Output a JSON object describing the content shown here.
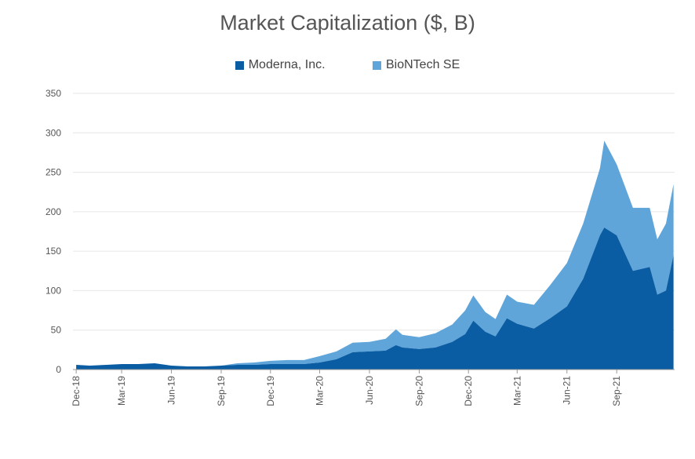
{
  "chart_data": {
    "type": "area",
    "title": "Market Capitalization ($, B)",
    "legend_position": "top",
    "stacked": true,
    "ylim": [
      0,
      350
    ],
    "yticks": [
      0,
      50,
      100,
      150,
      200,
      250,
      300,
      350
    ],
    "grid": true,
    "x_tick_labels": [
      "Dec-18",
      "Mar-19",
      "Jun-19",
      "Sep-19",
      "Dec-19",
      "Mar-20",
      "Jun-20",
      "Sep-20",
      "Dec-20",
      "Mar-21",
      "Jun-21",
      "Sep-21"
    ],
    "series": [
      {
        "name": "Moderna, Inc.",
        "color": "#0a5da3",
        "points": [
          [
            "2018-12-07",
            6
          ],
          [
            "2019-01-01",
            5
          ],
          [
            "2019-02-01",
            6
          ],
          [
            "2019-03-01",
            7
          ],
          [
            "2019-04-01",
            7
          ],
          [
            "2019-05-01",
            8
          ],
          [
            "2019-06-01",
            5
          ],
          [
            "2019-07-01",
            4
          ],
          [
            "2019-08-01",
            4
          ],
          [
            "2019-09-01",
            5
          ],
          [
            "2019-10-01",
            6
          ],
          [
            "2019-11-01",
            6
          ],
          [
            "2019-12-01",
            7
          ],
          [
            "2020-01-01",
            7
          ],
          [
            "2020-02-01",
            7
          ],
          [
            "2020-03-01",
            9
          ],
          [
            "2020-04-01",
            13
          ],
          [
            "2020-05-01",
            22
          ],
          [
            "2020-06-01",
            23
          ],
          [
            "2020-07-01",
            24
          ],
          [
            "2020-07-20",
            31
          ],
          [
            "2020-08-01",
            28
          ],
          [
            "2020-09-01",
            26
          ],
          [
            "2020-10-01",
            28
          ],
          [
            "2020-11-01",
            35
          ],
          [
            "2020-11-25",
            45
          ],
          [
            "2020-12-10",
            62
          ],
          [
            "2021-01-01",
            48
          ],
          [
            "2021-01-20",
            42
          ],
          [
            "2021-02-10",
            65
          ],
          [
            "2021-03-01",
            58
          ],
          [
            "2021-04-01",
            52
          ],
          [
            "2021-05-01",
            65
          ],
          [
            "2021-06-01",
            80
          ],
          [
            "2021-07-01",
            115
          ],
          [
            "2021-08-01",
            170
          ],
          [
            "2021-08-09",
            180
          ],
          [
            "2021-09-01",
            170
          ],
          [
            "2021-10-01",
            125
          ],
          [
            "2021-11-01",
            130
          ],
          [
            "2021-11-15",
            95
          ],
          [
            "2021-12-01",
            100
          ],
          [
            "2021-12-15",
            145
          ]
        ]
      },
      {
        "name": "BioNTech SE",
        "color": "#5fa5d9",
        "points": [
          [
            "2018-12-07",
            0
          ],
          [
            "2019-09-01",
            0
          ],
          [
            "2019-10-01",
            2
          ],
          [
            "2019-11-01",
            3
          ],
          [
            "2019-12-01",
            4
          ],
          [
            "2020-01-01",
            5
          ],
          [
            "2020-02-01",
            5
          ],
          [
            "2020-03-01",
            8
          ],
          [
            "2020-04-01",
            10
          ],
          [
            "2020-05-01",
            12
          ],
          [
            "2020-06-01",
            12
          ],
          [
            "2020-07-01",
            15
          ],
          [
            "2020-07-20",
            20
          ],
          [
            "2020-08-01",
            16
          ],
          [
            "2020-09-01",
            15
          ],
          [
            "2020-10-01",
            18
          ],
          [
            "2020-11-01",
            22
          ],
          [
            "2020-11-25",
            30
          ],
          [
            "2020-12-10",
            32
          ],
          [
            "2021-01-01",
            25
          ],
          [
            "2021-01-20",
            22
          ],
          [
            "2021-02-10",
            30
          ],
          [
            "2021-03-01",
            28
          ],
          [
            "2021-04-01",
            30
          ],
          [
            "2021-05-01",
            42
          ],
          [
            "2021-06-01",
            55
          ],
          [
            "2021-07-01",
            70
          ],
          [
            "2021-08-01",
            85
          ],
          [
            "2021-08-09",
            110
          ],
          [
            "2021-09-01",
            90
          ],
          [
            "2021-10-01",
            80
          ],
          [
            "2021-11-01",
            75
          ],
          [
            "2021-11-15",
            70
          ],
          [
            "2021-12-01",
            85
          ],
          [
            "2021-12-15",
            90
          ]
        ]
      }
    ]
  }
}
